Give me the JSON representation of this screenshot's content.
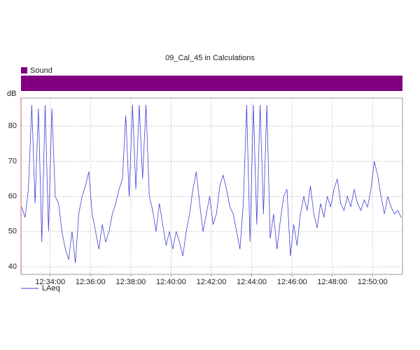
{
  "chart_data": {
    "type": "line",
    "title": "09_Cal_45 in Calculations",
    "ylabel": "dB",
    "band": {
      "name": "Sound",
      "color": "#800080"
    },
    "x": [
      "12:32:35",
      "12:32:45",
      "12:32:55",
      "12:33:05",
      "12:33:15",
      "12:33:25",
      "12:33:35",
      "12:33:45",
      "12:33:55",
      "12:34:05",
      "12:34:15",
      "12:34:25",
      "12:34:35",
      "12:34:45",
      "12:34:55",
      "12:35:05",
      "12:35:15",
      "12:35:25",
      "12:35:35",
      "12:35:45",
      "12:35:55",
      "12:36:05",
      "12:36:15",
      "12:36:25",
      "12:36:35",
      "12:36:45",
      "12:36:55",
      "12:37:05",
      "12:37:15",
      "12:37:25",
      "12:37:35",
      "12:37:45",
      "12:37:55",
      "12:38:05",
      "12:38:15",
      "12:38:25",
      "12:38:35",
      "12:38:45",
      "12:38:55",
      "12:39:05",
      "12:39:15",
      "12:39:25",
      "12:39:35",
      "12:39:45",
      "12:39:55",
      "12:40:05",
      "12:40:15",
      "12:40:25",
      "12:40:35",
      "12:40:45",
      "12:40:55",
      "12:41:05",
      "12:41:15",
      "12:41:25",
      "12:41:35",
      "12:41:45",
      "12:41:55",
      "12:42:05",
      "12:42:15",
      "12:42:25",
      "12:42:35",
      "12:42:45",
      "12:42:55",
      "12:43:05",
      "12:43:15",
      "12:43:25",
      "12:43:35",
      "12:43:45",
      "12:43:55",
      "12:44:05",
      "12:44:15",
      "12:44:25",
      "12:44:35",
      "12:44:45",
      "12:44:55",
      "12:45:05",
      "12:45:15",
      "12:45:25",
      "12:45:35",
      "12:45:45",
      "12:45:55",
      "12:46:05",
      "12:46:15",
      "12:46:25",
      "12:46:35",
      "12:46:45",
      "12:46:55",
      "12:47:05",
      "12:47:15",
      "12:47:25",
      "12:47:35",
      "12:47:45",
      "12:47:55",
      "12:48:05",
      "12:48:15",
      "12:48:25",
      "12:48:35",
      "12:48:45",
      "12:48:55",
      "12:49:05",
      "12:49:15",
      "12:49:25",
      "12:49:35",
      "12:49:45",
      "12:49:55",
      "12:50:05",
      "12:50:15",
      "12:50:25",
      "12:50:35",
      "12:50:45",
      "12:50:55",
      "12:51:05",
      "12:51:15",
      "12:51:25"
    ],
    "series": [
      {
        "name": "LAeq",
        "color": "#4040d8",
        "values": [
          57,
          54,
          62,
          86,
          58,
          85,
          47,
          86,
          50,
          85,
          60,
          58,
          50,
          45,
          42,
          50,
          41,
          55,
          60,
          63,
          67,
          55,
          50,
          45,
          52,
          47,
          50,
          55,
          58,
          62,
          65,
          83,
          60,
          86,
          62,
          86,
          65,
          86,
          60,
          56,
          50,
          58,
          52,
          46,
          50,
          45,
          50,
          47,
          43,
          50,
          55,
          62,
          67,
          58,
          50,
          55,
          60,
          52,
          55,
          63,
          66,
          62,
          57,
          55,
          50,
          45,
          58,
          86,
          47,
          86,
          52,
          86,
          55,
          86,
          48,
          55,
          45,
          53,
          60,
          62,
          43,
          52,
          46,
          55,
          60,
          56,
          63,
          55,
          51,
          58,
          54,
          60,
          57,
          62,
          65,
          58,
          56,
          60,
          57,
          62,
          58,
          56,
          59,
          57,
          62,
          70,
          66,
          60,
          55,
          60,
          57,
          55,
          56,
          54
        ]
      }
    ],
    "xlim": [
      "12:32:33",
      "12:51:29"
    ],
    "xticks": [
      "12:34:00",
      "12:36:00",
      "12:38:00",
      "12:40:00",
      "12:42:00",
      "12:44:00",
      "12:46:00",
      "12:48:00",
      "12:50:00"
    ],
    "ylim": [
      37.8,
      88
    ],
    "yticks": [
      40,
      50,
      60,
      70,
      80
    ],
    "grid": true
  }
}
